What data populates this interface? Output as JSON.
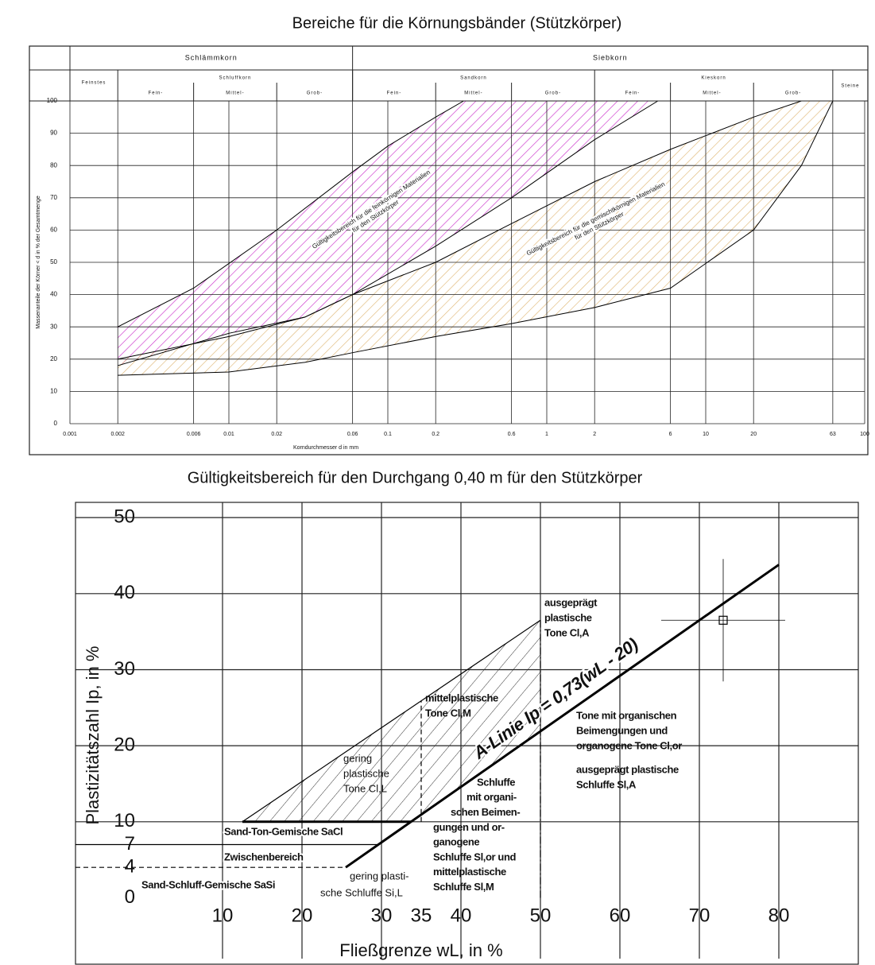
{
  "chart_data": [
    {
      "type": "line",
      "title": "Bereiche für die Körnungsbänder (Stützkörper)",
      "header": {
        "row1": [
          "Schlämmkorn",
          "Siebkorn"
        ],
        "feinstes": "Feinstes",
        "groups": [
          {
            "name": "Schluffkorn",
            "parts": [
              "Fein-",
              "Mittel-",
              "Grob-"
            ]
          },
          {
            "name": "Sandkorn",
            "parts": [
              "Fein-",
              "Mittel-",
              "Grob-"
            ]
          },
          {
            "name": "Kieskorn",
            "parts": [
              "Fein-",
              "Mittel-",
              "Grob-"
            ]
          }
        ],
        "steine": "Steine"
      },
      "xlabel": "Korndurchmesser d in mm",
      "ylabel": "Massenanteile der Körner < d in % der Gesamtmenge",
      "log_x": true,
      "xlim": [
        0.001,
        100
      ],
      "xticks": [
        0.001,
        0.002,
        0.006,
        0.01,
        0.02,
        0.06,
        0.1,
        0.2,
        0.6,
        1,
        2,
        6,
        10,
        20,
        63,
        100
      ],
      "ylim": [
        0,
        100
      ],
      "yticks": [
        0,
        10,
        20,
        30,
        40,
        50,
        60,
        70,
        80,
        90,
        100
      ],
      "grid": true,
      "line_color": "#000000",
      "bands": [
        {
          "color": "#cc33cc",
          "upper": {
            "x": [
              0.002,
              0.006,
              0.02,
              0.06,
              0.1,
              0.2,
              0.3
            ],
            "values": [
              30,
              42,
              60,
              78,
              86,
              95,
              100
            ]
          },
          "lower": {
            "x": [
              0.002,
              0.01,
              0.03,
              0.06,
              0.2,
              0.6,
              2,
              5
            ],
            "values": [
              18,
              28,
              33,
              40,
              55,
              70,
              88,
              100
            ]
          }
        },
        {
          "color": "#e0b878",
          "upper": {
            "x": [
              0.002,
              0.01,
              0.03,
              0.06,
              0.2,
              0.6,
              2,
              6,
              20,
              40
            ],
            "values": [
              20,
              27,
              33,
              40,
              50,
              62,
              75,
              85,
              95,
              100
            ]
          },
          "lower": {
            "x": [
              0.002,
              0.01,
              0.03,
              0.06,
              0.2,
              0.6,
              2,
              6,
              20,
              40,
              63
            ],
            "values": [
              15,
              16,
              19,
              22,
              27,
              31,
              36,
              42,
              60,
              80,
              100
            ]
          }
        }
      ],
      "annotations": [
        [
          "Gültigkeitsbereich für die feinkörnigen Materialien",
          "für den Stützkörper"
        ],
        [
          "Gültigkeitsbereich für die gemischtkörnigen Materialien",
          "für den Stützkörper"
        ]
      ]
    },
    {
      "type": "line",
      "title": "Gültigkeitsbereich für den Durchgang 0,40 m für den Stützkörper",
      "xlabel": "Fließgrenze wL, in %",
      "ylabel": "Plastizitätszahl Ip, in %",
      "xlim": [
        -8.5,
        90
      ],
      "xticks": [
        10,
        20,
        30,
        35,
        40,
        50,
        60,
        70,
        80
      ],
      "xgrid": [
        10,
        20,
        30,
        40,
        50,
        60,
        70,
        80
      ],
      "ylim": [
        -8,
        52
      ],
      "yticks": [
        0,
        4,
        7,
        10,
        20,
        30,
        40,
        50
      ],
      "ygrid": [
        10,
        20,
        30,
        40,
        50
      ],
      "areas": [
        {
          "color": "#000000",
          "x": [
            12.5,
            50,
            50,
            33.7
          ],
          "values": [
            10,
            36.5,
            21.9,
            10
          ]
        }
      ],
      "lines": [
        {
          "color": "#000000",
          "style": "thick",
          "x": [
            25.5,
            80
          ],
          "values": [
            4,
            43.8
          ]
        },
        {
          "color": "#000000",
          "style": "solid",
          "x": [
            12.5,
            50
          ],
          "values": [
            10,
            36.5
          ]
        },
        {
          "color": "#000000",
          "style": "dashdot",
          "x": [
            50,
            50
          ],
          "values": [
            0,
            36.5
          ]
        },
        {
          "color": "#000000",
          "style": "dashed",
          "x": [
            35,
            35
          ],
          "values": [
            10,
            25.9
          ]
        },
        {
          "color": "#000000",
          "style": "solid",
          "x": [
            -8.5,
            29.6
          ],
          "values": [
            7,
            7
          ]
        },
        {
          "color": "#000000",
          "style": "dashed",
          "x": [
            -8.5,
            25.5
          ],
          "values": [
            4,
            4
          ]
        },
        {
          "color": "#000000",
          "style": "thick",
          "x": [
            12.5,
            33.7
          ],
          "values": [
            10,
            10
          ]
        }
      ],
      "points": [
        {
          "x": 73,
          "y": 36.5,
          "color": "#000000"
        }
      ],
      "annotations": [
        [
          "ausgeprägt",
          "plastische",
          "Tone Cl,A"
        ],
        [
          "mittelplastische",
          "Tone Cl,M"
        ],
        [
          "gering",
          "plastische",
          "Tone Cl,L"
        ],
        [
          "A-Linie Ip = 0,73(wL - 20)"
        ],
        [
          "Tone mit organischen",
          "Beimengungen und",
          "organogene Tone Cl,or"
        ],
        [
          "ausgeprägt plastische",
          "Schluffe Sl,A"
        ],
        [
          "Schluffe",
          "mit organi-",
          "schen Beimen-",
          "gungen und or-",
          "ganogene",
          "Schluffe Sl,or und",
          "mittelplastische",
          "Schluffe Sl,M"
        ],
        [
          "Sand-Ton-Gemische SaCl"
        ],
        [
          "Zwischenbereich"
        ],
        [
          "Sand-Schluff-Gemische SaSi"
        ],
        [
          "gering plasti-",
          "sche Schluffe Si,L"
        ]
      ]
    }
  ]
}
